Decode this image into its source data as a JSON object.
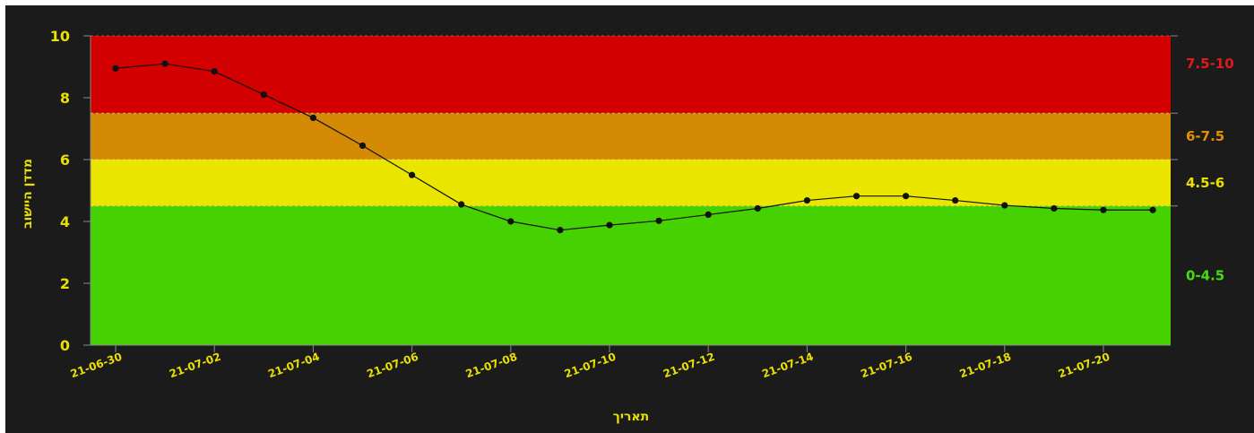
{
  "chart_data": {
    "type": "line",
    "xlabel": "תאריך",
    "ylabel": "מדדן היישוב",
    "ylim": [
      0,
      10
    ],
    "y_ticks": [
      0,
      2,
      4,
      6,
      8,
      10
    ],
    "x_tick_labels": [
      "21-06-30",
      "21-07-02",
      "21-07-04",
      "21-07-06",
      "21-07-08",
      "21-07-10",
      "21-07-12",
      "21-07-14",
      "21-07-16",
      "21-07-18",
      "21-07-20"
    ],
    "x": [
      "21-06-30",
      "21-07-01",
      "21-07-02",
      "21-07-03",
      "21-07-04",
      "21-07-05",
      "21-07-06",
      "21-07-07",
      "21-07-08",
      "21-07-09",
      "21-07-10",
      "21-07-11",
      "21-07-12",
      "21-07-13",
      "21-07-14",
      "21-07-15",
      "21-07-16",
      "21-07-17",
      "21-07-18",
      "21-07-19",
      "21-07-20",
      "21-07-21"
    ],
    "series": [
      {
        "values": [
          8.95,
          9.1,
          8.85,
          8.1,
          7.35,
          6.45,
          5.5,
          4.55,
          4.0,
          3.72,
          3.88,
          4.02,
          4.22,
          4.42,
          4.68,
          4.82,
          4.82,
          4.68,
          4.52,
          4.42,
          4.37,
          4.37
        ],
        "color": "#111111"
      }
    ],
    "bands": [
      {
        "label": "0-4.5",
        "from": 0,
        "to": 4.5,
        "color": "#46d103",
        "label_color": "#44dd11"
      },
      {
        "label": "4.5-6",
        "from": 4.5,
        "to": 6,
        "color": "#eae600",
        "label_color": "#e8e000"
      },
      {
        "label": "6-7.5",
        "from": 6,
        "to": 7.5,
        "color": "#d48a05",
        "label_color": "#e49000"
      },
      {
        "label": "7.5-10",
        "from": 7.5,
        "to": 10,
        "color": "#d20000",
        "label_color": "#e21a1a"
      }
    ],
    "grid": true,
    "colors": {
      "background": "#1b1b1b",
      "axis_text": "#e8e000",
      "axis_line": "#888888"
    }
  }
}
